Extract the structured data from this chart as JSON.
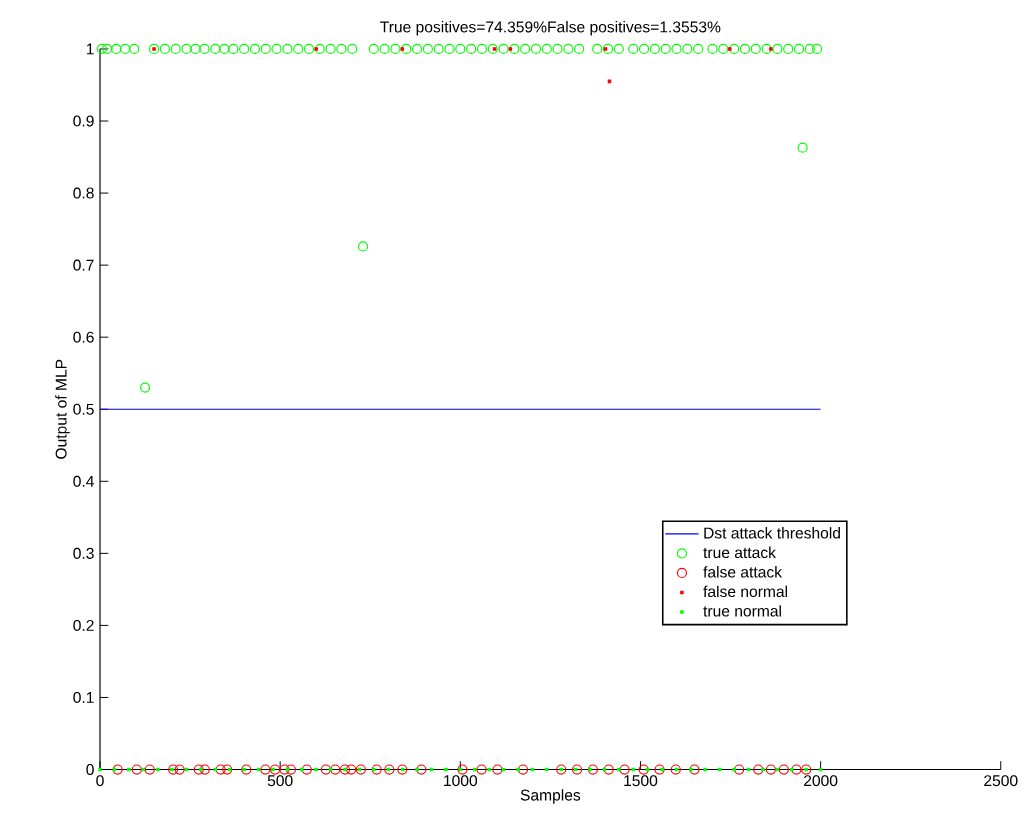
{
  "chart_data": {
    "type": "scatter",
    "title": "True positives=74.359%False positives=1.3553%",
    "xlabel": "Samples",
    "ylabel": "Output of MLP",
    "xlim": [
      0,
      2500
    ],
    "ylim": [
      0,
      1
    ],
    "xticks": [
      0,
      500,
      1000,
      1500,
      2000,
      2500
    ],
    "yticks": [
      0,
      0.1,
      0.2,
      0.3,
      0.4,
      0.5,
      0.6,
      0.7,
      0.8,
      0.9,
      1
    ],
    "legend": "right",
    "series": [
      {
        "name": "Dst attack threshold",
        "type": "line",
        "marker": "none",
        "line_style": "solid",
        "color": "#0000ff",
        "x": [
          0,
          2000
        ],
        "values": [
          0.5,
          0.5
        ]
      },
      {
        "name": "true attack",
        "marker": "circle",
        "color": "#00ff00",
        "x": [
          5,
          20,
          45,
          70,
          95,
          125,
          150,
          180,
          210,
          240,
          265,
          290,
          320,
          345,
          370,
          400,
          430,
          460,
          490,
          520,
          550,
          580,
          610,
          640,
          670,
          700,
          730,
          760,
          790,
          820,
          850,
          880,
          910,
          940,
          970,
          1000,
          1030,
          1060,
          1090,
          1120,
          1150,
          1180,
          1210,
          1240,
          1270,
          1300,
          1330,
          1380,
          1410,
          1440,
          1480,
          1510,
          1540,
          1570,
          1600,
          1630,
          1660,
          1700,
          1730,
          1760,
          1790,
          1820,
          1850,
          1880,
          1910,
          1940,
          1950,
          1970,
          1990
        ],
        "values": [
          1,
          1,
          1,
          1,
          1,
          0.53,
          1,
          1,
          1,
          1,
          1,
          1,
          1,
          1,
          1,
          1,
          1,
          1,
          1,
          1,
          1,
          1,
          1,
          1,
          1,
          1,
          0.726,
          1,
          1,
          1,
          1,
          1,
          1,
          1,
          1,
          1,
          1,
          1,
          1,
          1,
          1,
          1,
          1,
          1,
          1,
          1,
          1,
          1,
          1,
          1,
          1,
          1,
          1,
          1,
          1,
          1,
          1,
          1,
          1,
          1,
          1,
          1,
          1,
          1,
          1,
          1,
          0.863,
          1,
          1
        ]
      },
      {
        "name": "false attack",
        "marker": "circle",
        "color": "#ff0000",
        "x": [
          49,
          102,
          138,
          203,
          221,
          274,
          291,
          335,
          353,
          406,
          459,
          486,
          512,
          530,
          574,
          627,
          653,
          680,
          697,
          724,
          768,
          803,
          839,
          892,
          1006,
          1059,
          1103,
          1174,
          1280,
          1324,
          1368,
          1412,
          1456,
          1509,
          1553,
          1598,
          1650,
          1774,
          1827,
          1862,
          1898,
          1933,
          1960
        ],
        "values": [
          0,
          0,
          0,
          0,
          0,
          0,
          0,
          0,
          0,
          0,
          0,
          0,
          0,
          0,
          0,
          0,
          0,
          0,
          0,
          0,
          0,
          0,
          0,
          0,
          0,
          0,
          0,
          0,
          0,
          0,
          0,
          0,
          0,
          0,
          0,
          0,
          0,
          0,
          0,
          0,
          0,
          0,
          0
        ]
      },
      {
        "name": "false normal",
        "marker": "square",
        "color": "#ff0000",
        "x": [
          150,
          600,
          839,
          1095,
          1139,
          1403,
          1414,
          1748,
          1862
        ],
        "values": [
          1,
          1,
          1,
          1,
          1,
          1,
          0.955,
          1,
          1
        ]
      },
      {
        "name": "true normal",
        "marker": "square",
        "color": "#00ff00",
        "x": [
          0,
          40,
          80,
          120,
          160,
          200,
          240,
          280,
          320,
          360,
          400,
          440,
          480,
          520,
          560,
          600,
          640,
          680,
          720,
          760,
          800,
          840,
          880,
          920,
          960,
          1000,
          1040,
          1080,
          1120,
          1160,
          1200,
          1240,
          1280,
          1320,
          1360,
          1400,
          1440,
          1480,
          1520,
          1560,
          1600,
          1640,
          1680,
          1720,
          1760,
          1800,
          1840,
          1880,
          1920,
          1960,
          2000
        ],
        "values": [
          0,
          0,
          0,
          0,
          0,
          0,
          0,
          0,
          0,
          0,
          0,
          0,
          0,
          0,
          0,
          0,
          0,
          0,
          0,
          0,
          0,
          0,
          0,
          0,
          0,
          0,
          0,
          0,
          0,
          0,
          0,
          0,
          0,
          0,
          0,
          0,
          0,
          0,
          0,
          0,
          0,
          0,
          0,
          0,
          0,
          0,
          0,
          0,
          0,
          0,
          0
        ]
      }
    ]
  }
}
